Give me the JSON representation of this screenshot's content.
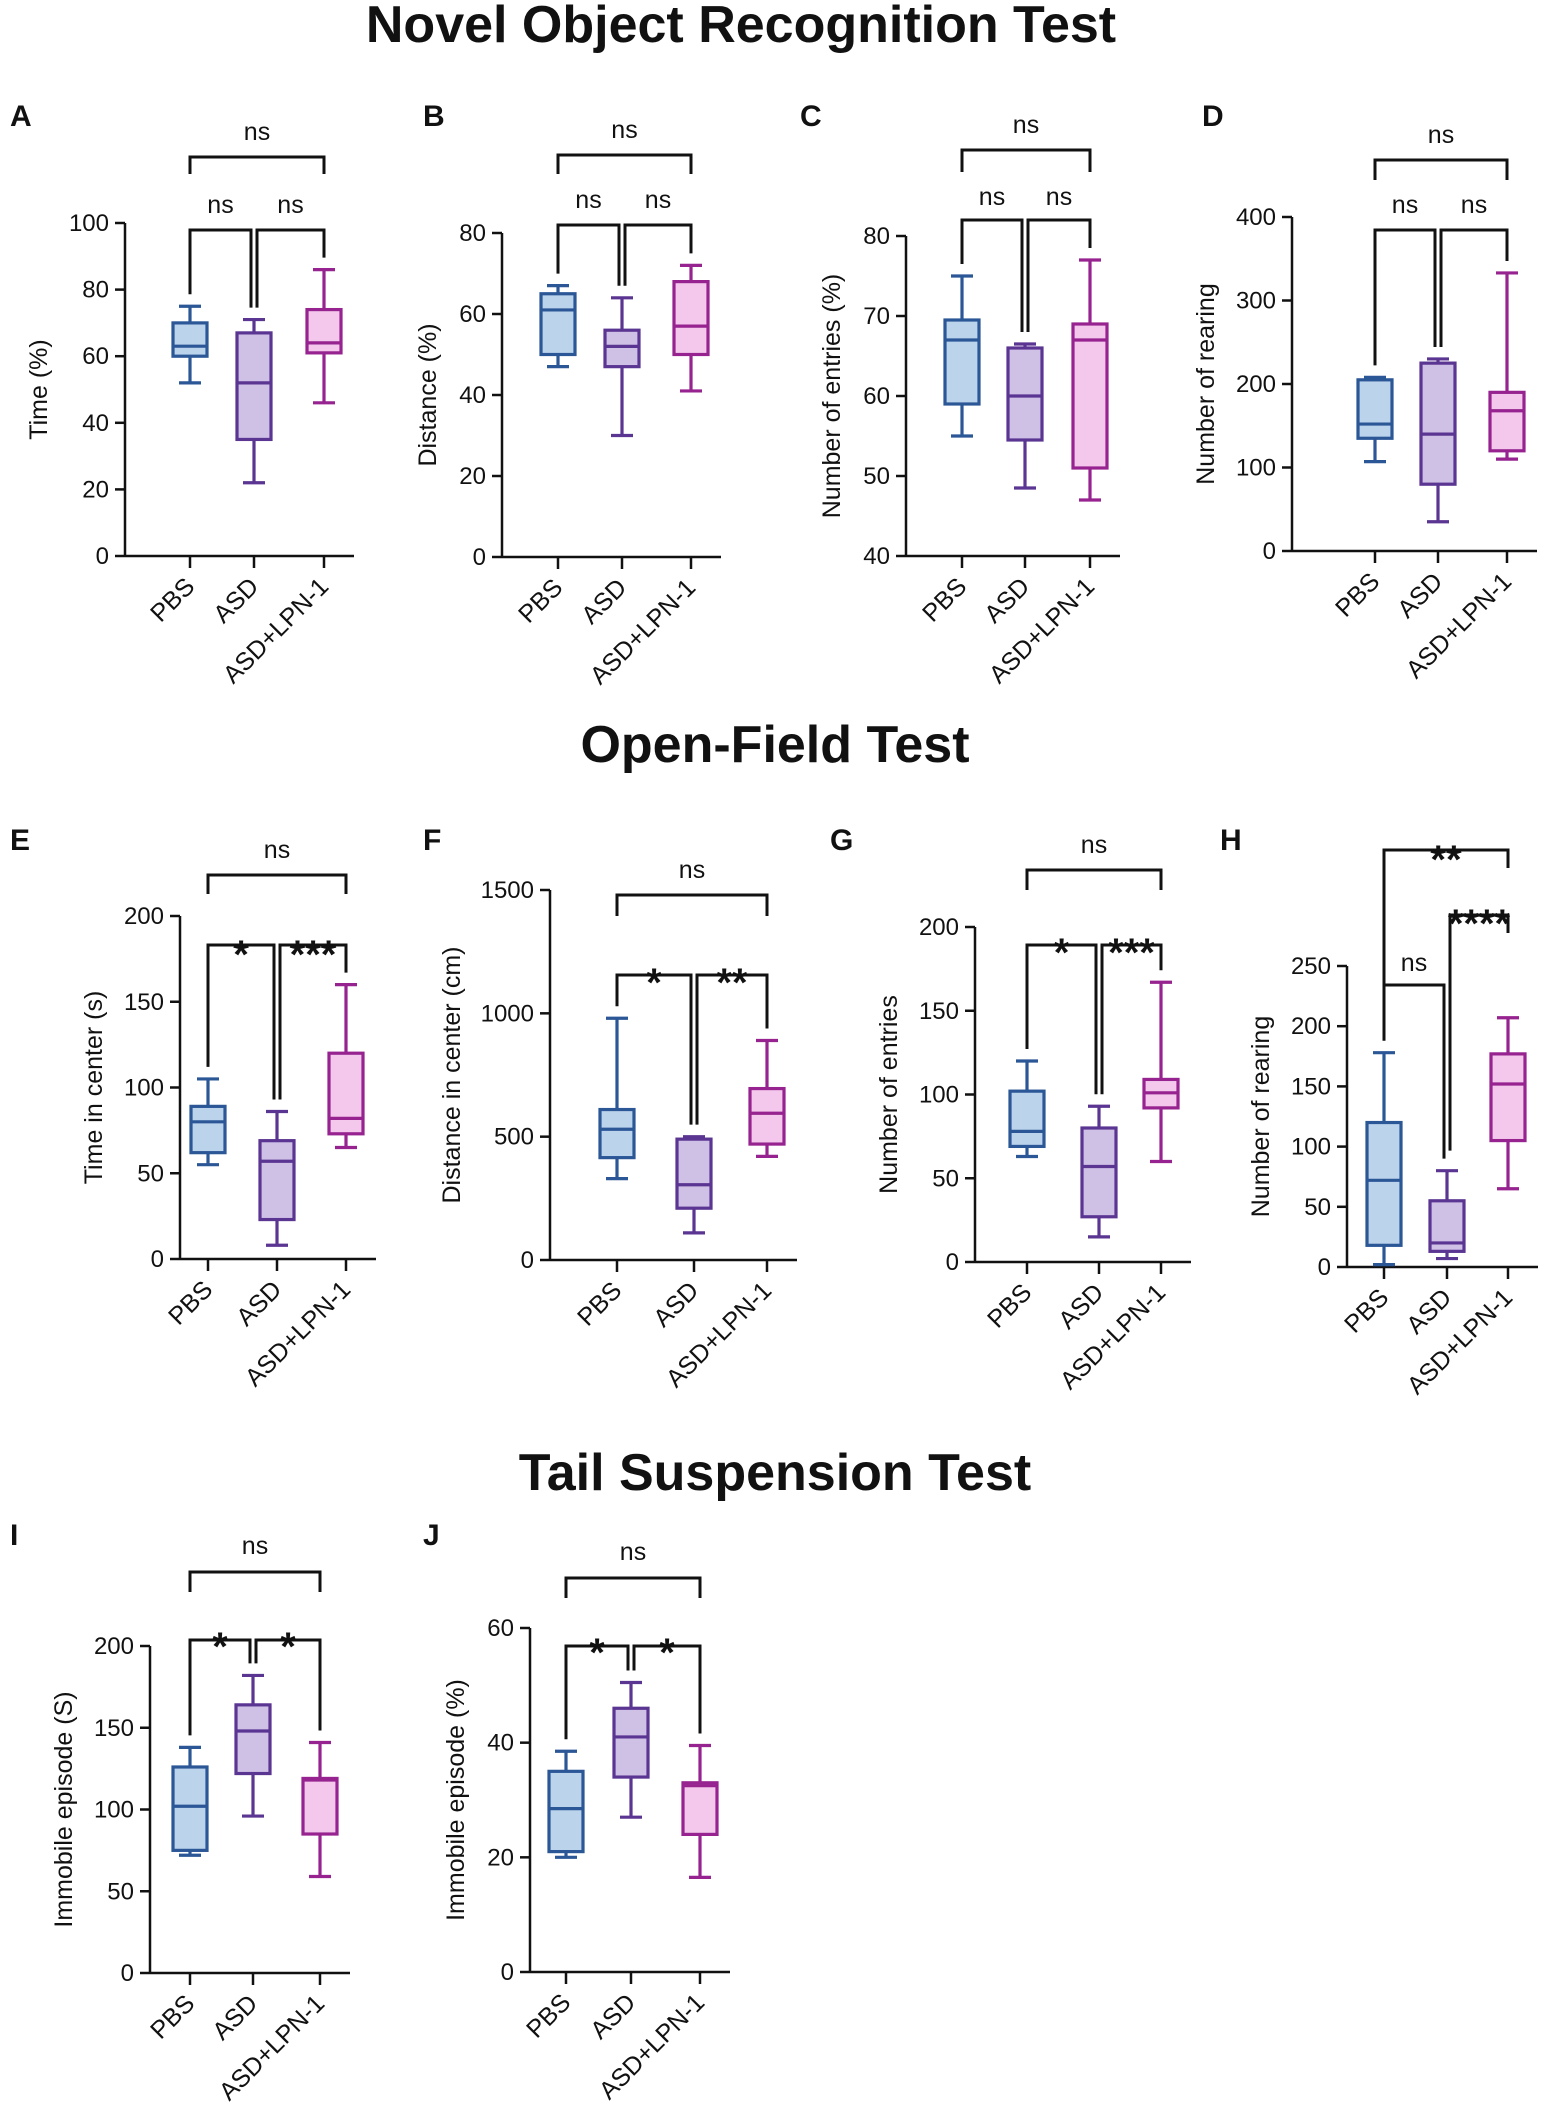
{
  "section_titles": [
    "Novel Object Recognition Test",
    "Open-Field Test",
    "Tail Suspension Test"
  ],
  "colors": {
    "PBS": {
      "stroke": "#2b5797",
      "fill": "#bcd3ec"
    },
    "ASD": {
      "stroke": "#5b3592",
      "fill": "#cfc0e6"
    },
    "ASD+LPN-1": {
      "stroke": "#96238f",
      "fill": "#f3c8ec"
    }
  },
  "chart_data": [
    {
      "panel": "A",
      "type": "box",
      "section": 0,
      "ylabel": "Time (%)",
      "ylim": [
        0,
        100
      ],
      "yticks": [
        0,
        20,
        40,
        60,
        80,
        100
      ],
      "categories": [
        "PBS",
        "ASD",
        "ASD+LPN-1"
      ],
      "boxes": [
        {
          "min": 52,
          "q1": 60,
          "median": 63,
          "q3": 70,
          "max": 75
        },
        {
          "min": 22,
          "q1": 35,
          "median": 52,
          "q3": 67,
          "max": 71
        },
        {
          "min": 46,
          "q1": 61,
          "median": 64,
          "q3": 74,
          "max": 86
        }
      ],
      "comparisons": [
        {
          "from": 0,
          "to": 2,
          "label": "ns"
        },
        {
          "from": 0,
          "to": 1,
          "label": "ns"
        },
        {
          "from": 1,
          "to": 2,
          "label": "ns"
        }
      ]
    },
    {
      "panel": "B",
      "type": "box",
      "section": 0,
      "ylabel": "Distance (%)",
      "ylim": [
        0,
        80
      ],
      "yticks": [
        0,
        20,
        40,
        60,
        80
      ],
      "categories": [
        "PBS",
        "ASD",
        "ASD+LPN-1"
      ],
      "boxes": [
        {
          "min": 47,
          "q1": 50,
          "median": 61,
          "q3": 65,
          "max": 67
        },
        {
          "min": 30,
          "q1": 47,
          "median": 52,
          "q3": 56,
          "max": 64
        },
        {
          "min": 41,
          "q1": 50,
          "median": 57,
          "q3": 68,
          "max": 72
        }
      ],
      "comparisons": [
        {
          "from": 0,
          "to": 2,
          "label": "ns"
        },
        {
          "from": 0,
          "to": 1,
          "label": "ns"
        },
        {
          "from": 1,
          "to": 2,
          "label": "ns"
        }
      ]
    },
    {
      "panel": "C",
      "type": "box",
      "section": 0,
      "ylabel": "Number of entries (%)",
      "ylim": [
        40,
        80
      ],
      "yticks": [
        40,
        50,
        60,
        70,
        80
      ],
      "categories": [
        "PBS",
        "ASD",
        "ASD+LPN-1"
      ],
      "boxes": [
        {
          "min": 55,
          "q1": 59,
          "median": 67,
          "q3": 69.5,
          "max": 75
        },
        {
          "min": 48.5,
          "q1": 54.5,
          "median": 60,
          "q3": 66,
          "max": 66.5
        },
        {
          "min": 47,
          "q1": 51,
          "median": 67,
          "q3": 69,
          "max": 77
        }
      ],
      "comparisons": [
        {
          "from": 0,
          "to": 2,
          "label": "ns"
        },
        {
          "from": 0,
          "to": 1,
          "label": "ns"
        },
        {
          "from": 1,
          "to": 2,
          "label": "ns"
        }
      ]
    },
    {
      "panel": "D",
      "type": "box",
      "section": 0,
      "ylabel": "Number of rearing",
      "ylim": [
        0,
        400
      ],
      "yticks": [
        0,
        100,
        200,
        300,
        400
      ],
      "categories": [
        "PBS",
        "ASD",
        "ASD+LPN-1"
      ],
      "boxes": [
        {
          "min": 107,
          "q1": 135,
          "median": 152,
          "q3": 205,
          "max": 208
        },
        {
          "min": 35,
          "q1": 80,
          "median": 140,
          "q3": 225,
          "max": 230
        },
        {
          "min": 110,
          "q1": 120,
          "median": 168,
          "q3": 190,
          "max": 333
        }
      ],
      "comparisons": [
        {
          "from": 0,
          "to": 2,
          "label": "ns"
        },
        {
          "from": 0,
          "to": 1,
          "label": "ns"
        },
        {
          "from": 1,
          "to": 2,
          "label": "ns"
        }
      ]
    },
    {
      "panel": "E",
      "type": "box",
      "section": 1,
      "ylabel": "Time in center (s)",
      "ylim": [
        0,
        200
      ],
      "yticks": [
        0,
        50,
        100,
        150,
        200
      ],
      "categories": [
        "PBS",
        "ASD",
        "ASD+LPN-1"
      ],
      "boxes": [
        {
          "min": 55,
          "q1": 62,
          "median": 80,
          "q3": 89,
          "max": 105
        },
        {
          "min": 8,
          "q1": 23,
          "median": 57,
          "q3": 69,
          "max": 86
        },
        {
          "min": 65,
          "q1": 73,
          "median": 82,
          "q3": 120,
          "max": 160
        }
      ],
      "comparisons": [
        {
          "from": 0,
          "to": 2,
          "label": "ns"
        },
        {
          "from": 0,
          "to": 1,
          "label": "*"
        },
        {
          "from": 1,
          "to": 2,
          "label": "***"
        }
      ]
    },
    {
      "panel": "F",
      "type": "box",
      "section": 1,
      "ylabel": "Distance in center (cm)",
      "ylim": [
        0,
        1500
      ],
      "yticks": [
        0,
        500,
        1000,
        1500
      ],
      "categories": [
        "PBS",
        "ASD",
        "ASD+LPN-1"
      ],
      "boxes": [
        {
          "min": 330,
          "q1": 415,
          "median": 530,
          "q3": 610,
          "max": 980
        },
        {
          "min": 110,
          "q1": 210,
          "median": 305,
          "q3": 490,
          "max": 500
        },
        {
          "min": 420,
          "q1": 470,
          "median": 595,
          "q3": 695,
          "max": 890
        }
      ],
      "comparisons": [
        {
          "from": 0,
          "to": 2,
          "label": "ns"
        },
        {
          "from": 0,
          "to": 1,
          "label": "*"
        },
        {
          "from": 1,
          "to": 2,
          "label": "**"
        }
      ]
    },
    {
      "panel": "G",
      "type": "box",
      "section": 1,
      "ylabel": "Number of entries",
      "ylim": [
        0,
        200
      ],
      "yticks": [
        0,
        50,
        100,
        150,
        200
      ],
      "categories": [
        "PBS",
        "ASD",
        "ASD+LPN-1"
      ],
      "boxes": [
        {
          "min": 63,
          "q1": 69,
          "median": 78,
          "q3": 102,
          "max": 120
        },
        {
          "min": 15,
          "q1": 27,
          "median": 57,
          "q3": 80,
          "max": 93
        },
        {
          "min": 60,
          "q1": 92,
          "median": 101,
          "q3": 109,
          "max": 167
        }
      ],
      "comparisons": [
        {
          "from": 0,
          "to": 2,
          "label": "ns"
        },
        {
          "from": 0,
          "to": 1,
          "label": "*"
        },
        {
          "from": 1,
          "to": 2,
          "label": "***"
        }
      ]
    },
    {
      "panel": "H",
      "type": "box",
      "section": 1,
      "ylabel": "Number of rearing",
      "ylim": [
        0,
        250
      ],
      "yticks": [
        0,
        50,
        100,
        150,
        200,
        250
      ],
      "categories": [
        "PBS",
        "ASD",
        "ASD+LPN-1"
      ],
      "boxes": [
        {
          "min": 2,
          "q1": 18,
          "median": 72,
          "q3": 120,
          "max": 178
        },
        {
          "min": 7,
          "q1": 13,
          "median": 20,
          "q3": 55,
          "max": 80
        },
        {
          "min": 65,
          "q1": 105,
          "median": 152,
          "q3": 177,
          "max": 207
        }
      ],
      "comparisons": [
        {
          "from": 0,
          "to": 2,
          "label": "**"
        },
        {
          "from": 1,
          "to": 2,
          "label": "****"
        },
        {
          "from": 0,
          "to": 1,
          "label": "ns"
        }
      ]
    },
    {
      "panel": "I",
      "type": "box",
      "section": 2,
      "ylabel": "Immobile episode  (S)",
      "ylim": [
        0,
        200
      ],
      "yticks": [
        0,
        50,
        100,
        150,
        200
      ],
      "categories": [
        "PBS",
        "ASD",
        "ASD+LPN-1"
      ],
      "boxes": [
        {
          "min": 72,
          "q1": 75,
          "median": 102,
          "q3": 126,
          "max": 138
        },
        {
          "min": 96,
          "q1": 122,
          "median": 148,
          "q3": 164,
          "max": 182
        },
        {
          "min": 59,
          "q1": 85,
          "median": 118,
          "q3": 119,
          "max": 141
        }
      ],
      "comparisons": [
        {
          "from": 0,
          "to": 2,
          "label": "ns"
        },
        {
          "from": 0,
          "to": 1,
          "label": "*"
        },
        {
          "from": 1,
          "to": 2,
          "label": "*"
        }
      ]
    },
    {
      "panel": "J",
      "type": "box",
      "section": 2,
      "ylabel": "Immobile episode  (%)",
      "ylim": [
        0,
        60
      ],
      "yticks": [
        0,
        20,
        40,
        60
      ],
      "categories": [
        "PBS",
        "ASD",
        "ASD+LPN-1"
      ],
      "boxes": [
        {
          "min": 20,
          "q1": 21,
          "median": 28.5,
          "q3": 35,
          "max": 38.5
        },
        {
          "min": 27,
          "q1": 34,
          "median": 41,
          "q3": 46,
          "max": 50.5
        },
        {
          "min": 16.5,
          "q1": 24,
          "median": 32.5,
          "q3": 33,
          "max": 39.5
        }
      ],
      "comparisons": [
        {
          "from": 0,
          "to": 2,
          "label": "ns"
        },
        {
          "from": 0,
          "to": 1,
          "label": "*"
        },
        {
          "from": 1,
          "to": 2,
          "label": "*"
        }
      ]
    }
  ]
}
